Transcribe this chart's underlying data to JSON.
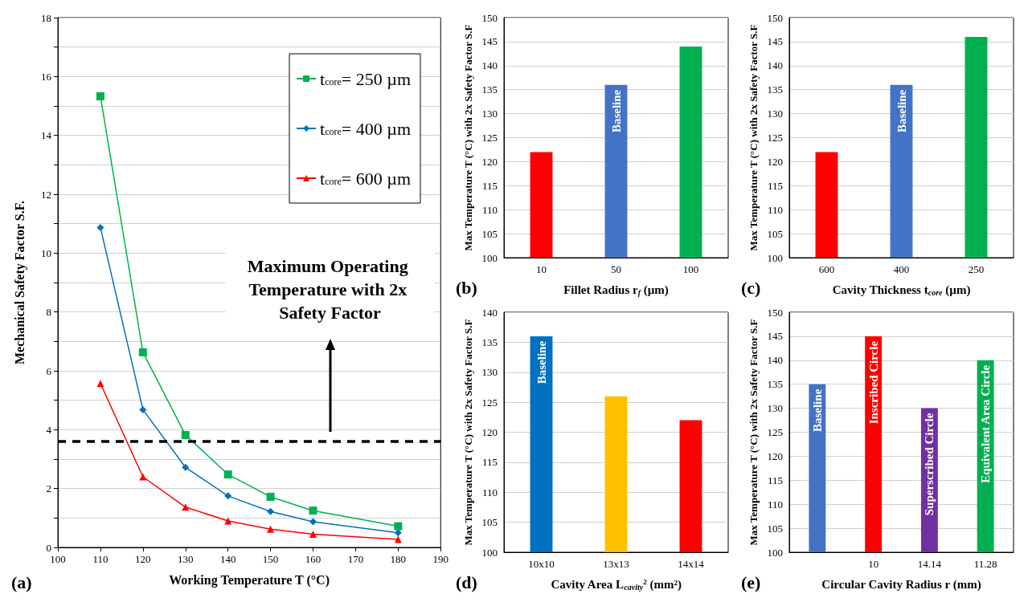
{
  "chart_data": [
    {
      "type": "line",
      "xlabel": "Working Temperature T (°C)",
      "ylabel": "Mechanical Safety Factor S.F.",
      "xlim": [
        100,
        190
      ],
      "xticks": [
        100,
        110,
        120,
        130,
        140,
        150,
        160,
        170,
        180,
        190
      ],
      "ylim": [
        0,
        18
      ],
      "yticks": [
        0,
        {
          "value": 1,
          "label": null
        },
        2,
        {
          "value": 3,
          "label": null
        },
        4,
        {
          "value": 5,
          "label": null
        },
        6,
        {
          "value": 7,
          "label": null
        },
        8,
        {
          "value": 9,
          "label": null
        },
        10,
        {
          "value": 11,
          "label": null
        },
        12,
        {
          "value": 13,
          "label": null
        },
        14,
        {
          "value": 15,
          "label": null
        },
        16,
        {
          "value": 17,
          "label": null
        },
        18
      ],
      "grid": "y",
      "legend": "top right",
      "x": [
        110,
        120,
        130,
        140,
        150,
        160,
        180
      ],
      "series": [
        {
          "name": "t$_{core}$= 250 µm",
          "color": "#00b050",
          "marker": "square",
          "values": [
            15.33,
            6.63,
            3.82,
            2.48,
            1.72,
            1.25,
            0.72
          ]
        },
        {
          "name": "t$_{core}$= 400 µm",
          "color": "#0070c0",
          "marker": "diamond",
          "values": [
            10.87,
            4.68,
            2.72,
            1.75,
            1.22,
            0.87,
            0.5
          ]
        },
        {
          "name": "t$_{core}$= 600 µm",
          "color": "#ff0000",
          "marker": "triangle",
          "values": [
            5.57,
            2.4,
            1.37,
            0.9,
            0.62,
            0.45,
            0.27
          ]
        }
      ],
      "ref_lines": [
        {
          "axis": "y",
          "value": 3.6,
          "color": "#000000",
          "line_style": "dashed"
        }
      ],
      "annotations": [
        "(a)",
        "Maximum Operating Temperature with 2x Safety Factor"
      ]
    },
    {
      "type": "bar",
      "xlabel": "Fillet Radius r$_{f}$ (µm)",
      "ylabel": "Max Temperature T (°C) with 2x Safety Factor S.F",
      "categories": [
        "10",
        "50",
        "100"
      ],
      "values": [
        122,
        136,
        144
      ],
      "colors": [
        "#ff0000",
        "#4472c4",
        "#00b050"
      ],
      "value_labels": [
        null,
        "Baseline",
        null
      ],
      "ylim": [
        100,
        150
      ],
      "yticks": [
        100,
        105,
        110,
        115,
        120,
        125,
        130,
        135,
        140,
        145,
        150
      ],
      "grid": "y",
      "annotations": [
        "(b)"
      ]
    },
    {
      "type": "bar",
      "xlabel": "Cavity Thickness t$_{core}$ (µm)",
      "ylabel": "Max Temperature T (°C) with 2x Safety Factor S.F",
      "categories": [
        "600",
        "400",
        "250"
      ],
      "values": [
        122,
        136,
        146
      ],
      "colors": [
        "#ff0000",
        "#4472c4",
        "#00b050"
      ],
      "value_labels": [
        null,
        "Baseline",
        null
      ],
      "ylim": [
        100,
        150
      ],
      "yticks": [
        100,
        105,
        110,
        115,
        120,
        125,
        130,
        135,
        140,
        145,
        150
      ],
      "grid": "y",
      "annotations": [
        "(c)"
      ]
    },
    {
      "type": "bar",
      "xlabel": "Cavity Area L$_{cavity}$$^{2}$ (mm²)",
      "ylabel": "Max Temperature T (°C) with 2x Safety Factor S.F",
      "categories": [
        "10x10",
        "13x13",
        "14x14"
      ],
      "values": [
        136,
        126,
        122
      ],
      "colors": [
        "#0070c0",
        "#ffc000",
        "#ff0000"
      ],
      "value_labels": [
        "Baseline",
        null,
        null
      ],
      "ylim": [
        100,
        140
      ],
      "yticks": [
        100,
        105,
        110,
        115,
        120,
        125,
        130,
        135,
        140
      ],
      "grid": "y",
      "annotations": [
        "(d)"
      ]
    },
    {
      "type": "bar",
      "xlabel": "Circular Cavity Radius r (mm)",
      "ylabel": "Max Temperature T (°C) with 2x Safety Factor S.F",
      "categories": [
        null,
        "10",
        "14.14",
        "11.28"
      ],
      "values": [
        135,
        145,
        130,
        140
      ],
      "colors": [
        "#4472c4",
        "#ff0000",
        "#7030a0",
        "#00b050"
      ],
      "value_labels": [
        "Baseline",
        "Inscribed Circle",
        "Superscribed Circle",
        "Equivalent Area Circle"
      ],
      "ylim": [
        100,
        150
      ],
      "yticks": [
        100,
        105,
        110,
        115,
        120,
        125,
        130,
        135,
        140,
        145,
        150
      ],
      "grid": "y",
      "annotations": [
        "(e)"
      ]
    }
  ]
}
